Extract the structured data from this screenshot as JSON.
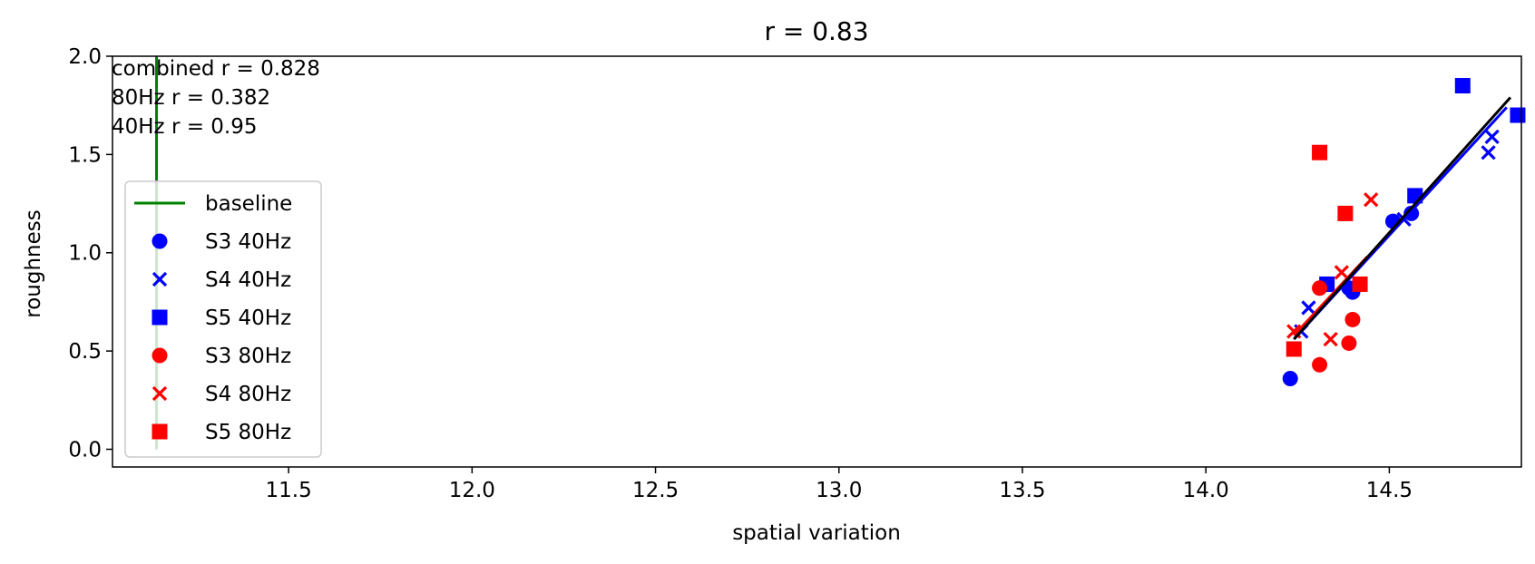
{
  "chart_data": {
    "type": "scatter",
    "title": "r = 0.83",
    "xlabel": "spatial variation",
    "ylabel": "roughness",
    "xlim": [
      11.02,
      14.86
    ],
    "ylim": [
      -0.09,
      2.0
    ],
    "xticks": [
      "11.5",
      "12.0",
      "12.5",
      "13.0",
      "13.5",
      "14.0",
      "14.5"
    ],
    "yticks": [
      "0.0",
      "0.5",
      "1.0",
      "1.5",
      "2.0"
    ],
    "annotations": [
      "combined r = 0.828",
      "80Hz r = 0.382",
      "40Hz r = 0.95"
    ],
    "legend_position": "left",
    "baseline": {
      "name": "baseline",
      "x": 11.14,
      "y_range": [
        0.0,
        2.0
      ],
      "color": "#008000"
    },
    "series": [
      {
        "name": "S3 40Hz",
        "marker": "circle",
        "color": "#0000ff",
        "points": [
          [
            14.23,
            0.36
          ],
          [
            14.39,
            0.82
          ],
          [
            14.4,
            0.8
          ],
          [
            14.51,
            1.16
          ],
          [
            14.56,
            1.2
          ]
        ]
      },
      {
        "name": "S4 40Hz",
        "marker": "x",
        "color": "#0000ff",
        "points": [
          [
            14.26,
            0.6
          ],
          [
            14.28,
            0.72
          ],
          [
            14.54,
            1.17
          ],
          [
            14.77,
            1.51
          ],
          [
            14.78,
            1.59
          ]
        ]
      },
      {
        "name": "S5 40Hz",
        "marker": "square",
        "color": "#0000ff",
        "points": [
          [
            14.33,
            0.84
          ],
          [
            14.57,
            1.29
          ],
          [
            14.7,
            1.85
          ],
          [
            14.85,
            1.7
          ]
        ]
      },
      {
        "name": "S3 80Hz",
        "marker": "circle",
        "color": "#ff0000",
        "points": [
          [
            14.31,
            0.43
          ],
          [
            14.31,
            0.82
          ],
          [
            14.39,
            0.54
          ],
          [
            14.4,
            0.66
          ]
        ]
      },
      {
        "name": "S4 80Hz",
        "marker": "x",
        "color": "#ff0000",
        "points": [
          [
            14.24,
            0.6
          ],
          [
            14.34,
            0.56
          ],
          [
            14.37,
            0.9
          ],
          [
            14.45,
            1.27
          ]
        ]
      },
      {
        "name": "S5 80Hz",
        "marker": "square",
        "color": "#ff0000",
        "points": [
          [
            14.24,
            0.51
          ],
          [
            14.31,
            1.51
          ],
          [
            14.38,
            1.2
          ],
          [
            14.42,
            0.84
          ]
        ]
      }
    ],
    "fit_lines": [
      {
        "color": "#0000ff",
        "from": [
          14.24,
          0.56
        ],
        "to": [
          14.82,
          1.74
        ]
      },
      {
        "color": "#ff0000",
        "from": [
          14.24,
          0.58
        ],
        "to": [
          14.44,
          0.98
        ]
      },
      {
        "color": "#000000",
        "from": [
          14.24,
          0.56
        ],
        "to": [
          14.83,
          1.79
        ]
      }
    ]
  }
}
